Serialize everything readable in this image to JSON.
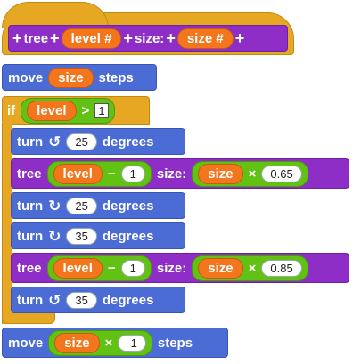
{
  "hat": {
    "plus": "+",
    "word_tree": "tree",
    "slot_level": "level #",
    "word_size": "size:",
    "slot_size": "size #"
  },
  "move1": {
    "label": "move",
    "var": "size",
    "suffix": "steps"
  },
  "if_block": {
    "label": "if",
    "var": "level",
    "op": ">",
    "value": "1"
  },
  "turn_ccw_1": {
    "label": "turn",
    "icon": "rotate-ccw-icon",
    "glyph": "↺",
    "value": "25",
    "suffix": "degrees"
  },
  "tree_call_1": {
    "label": "tree",
    "var": "level",
    "op": "−",
    "value": "1",
    "size_label": "size:",
    "size_var": "size",
    "mult": "×",
    "factor": "0.65"
  },
  "turn_cw_1": {
    "label": "turn",
    "icon": "rotate-cw-icon",
    "glyph": "↻",
    "value": "25",
    "suffix": "degrees"
  },
  "turn_cw_2": {
    "label": "turn",
    "icon": "rotate-cw-icon",
    "glyph": "↻",
    "value": "35",
    "suffix": "degrees"
  },
  "tree_call_2": {
    "label": "tree",
    "var": "level",
    "op": "−",
    "value": "1",
    "size_label": "size:",
    "size_var": "size",
    "mult": "×",
    "factor": "0.85"
  },
  "turn_ccw_2": {
    "label": "turn",
    "icon": "rotate-ccw-icon",
    "glyph": "↺",
    "value": "35",
    "suffix": "degrees"
  },
  "move2": {
    "label": "move",
    "var": "size",
    "mult": "×",
    "value": "-1",
    "suffix": "steps"
  }
}
